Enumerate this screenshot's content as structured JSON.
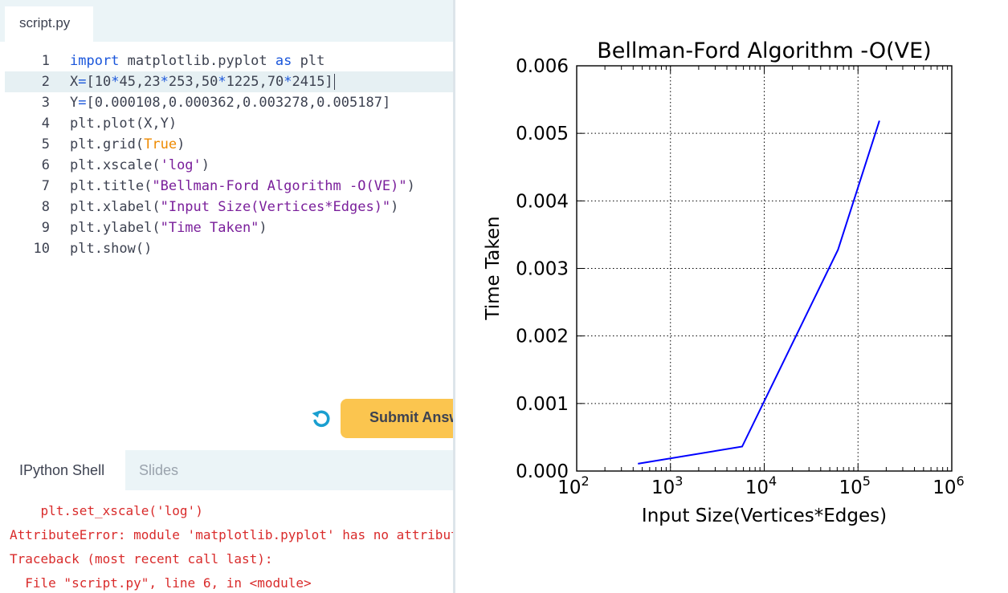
{
  "editor": {
    "file_tab": "script.py",
    "lines": [
      {
        "num": "1",
        "tokens": [
          [
            "kw",
            "import"
          ],
          [
            "plain",
            " matplotlib.pyplot "
          ],
          [
            "kw",
            "as"
          ],
          [
            "plain",
            " plt"
          ]
        ]
      },
      {
        "num": "2",
        "tokens": [
          [
            "plain",
            "X"
          ],
          [
            "op",
            "="
          ],
          [
            "plain",
            "[10"
          ],
          [
            "op",
            "*"
          ],
          [
            "plain",
            "45,23"
          ],
          [
            "op",
            "*"
          ],
          [
            "plain",
            "253,50"
          ],
          [
            "op",
            "*"
          ],
          [
            "plain",
            "1225,70"
          ],
          [
            "op",
            "*"
          ],
          [
            "plain",
            "2415]"
          ]
        ],
        "active": true
      },
      {
        "num": "3",
        "tokens": [
          [
            "plain",
            "Y"
          ],
          [
            "op",
            "="
          ],
          [
            "plain",
            "[0.000108,0.000362,0.003278,0.005187]"
          ]
        ]
      },
      {
        "num": "4",
        "tokens": [
          [
            "plain",
            "plt.plot(X,Y)"
          ]
        ]
      },
      {
        "num": "5",
        "tokens": [
          [
            "plain",
            "plt.grid("
          ],
          [
            "bool",
            "True"
          ],
          [
            "plain",
            ")"
          ]
        ]
      },
      {
        "num": "6",
        "tokens": [
          [
            "plain",
            "plt.xscale("
          ],
          [
            "str",
            "'log'"
          ],
          [
            "plain",
            ")"
          ]
        ]
      },
      {
        "num": "7",
        "tokens": [
          [
            "plain",
            "plt.title("
          ],
          [
            "str",
            "\"Bellman-Ford Algorithm -O(VE)\""
          ],
          [
            "plain",
            ")"
          ]
        ]
      },
      {
        "num": "8",
        "tokens": [
          [
            "plain",
            "plt.xlabel("
          ],
          [
            "str",
            "\"Input Size(Vertices*Edges)\""
          ],
          [
            "plain",
            ")"
          ]
        ]
      },
      {
        "num": "9",
        "tokens": [
          [
            "plain",
            "plt.ylabel("
          ],
          [
            "str",
            "\"Time Taken\""
          ],
          [
            "plain",
            ")"
          ]
        ]
      },
      {
        "num": "10",
        "tokens": [
          [
            "plain",
            "plt.show()"
          ]
        ]
      }
    ],
    "submit_label": "Submit Answer",
    "reset_icon": "reset-icon"
  },
  "shell": {
    "tabs": [
      "IPython Shell",
      "Slides"
    ],
    "output_lines": [
      "    plt.set_xscale('log')",
      "AttributeError: module 'matplotlib.pyplot' has no attribute 'set_xscale'",
      "Traceback (most recent call last):",
      "  File \"script.py\", line 6, in <module>"
    ],
    "error_color": "#d92b2b"
  },
  "chart_data": {
    "type": "line",
    "title": "Bellman-Ford Algorithm -O(VE)",
    "xlabel": "Input Size(Vertices*Edges)",
    "ylabel": "Time Taken",
    "xscale": "log",
    "xlim": [
      100,
      1000000
    ],
    "ylim": [
      0.0,
      0.006
    ],
    "grid": true,
    "x_ticks": [
      {
        "base": "10",
        "exp": "2",
        "value": 100
      },
      {
        "base": "10",
        "exp": "3",
        "value": 1000
      },
      {
        "base": "10",
        "exp": "4",
        "value": 10000
      },
      {
        "base": "10",
        "exp": "5",
        "value": 100000
      },
      {
        "base": "10",
        "exp": "6",
        "value": 1000000
      }
    ],
    "y_ticks": [
      {
        "label": "0.000",
        "value": 0.0
      },
      {
        "label": "0.001",
        "value": 0.001
      },
      {
        "label": "0.002",
        "value": 0.002
      },
      {
        "label": "0.003",
        "value": 0.003
      },
      {
        "label": "0.004",
        "value": 0.004
      },
      {
        "label": "0.005",
        "value": 0.005
      },
      {
        "label": "0.006",
        "value": 0.006
      }
    ],
    "series": [
      {
        "x": [
          450,
          5819,
          61250,
          169050
        ],
        "y": [
          0.000108,
          0.000362,
          0.003278,
          0.005187
        ],
        "color": "#0000ff"
      }
    ]
  }
}
